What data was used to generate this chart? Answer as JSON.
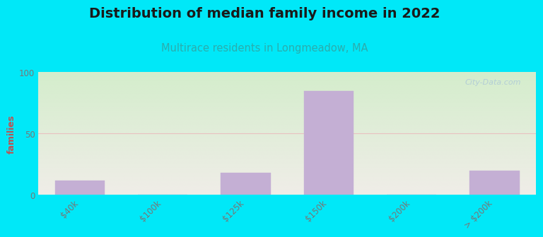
{
  "title": "Distribution of median family income in 2022",
  "subtitle": "Multirace residents in Longmeadow, MA",
  "categories": [
    "$40k",
    "$100k",
    "$125k",
    "$150k",
    "$200k",
    "> $200k"
  ],
  "values": [
    12,
    0,
    18,
    85,
    0,
    20
  ],
  "bar_color": "#c4afd4",
  "bar_edgecolor": "#c4afd4",
  "ylabel": "families",
  "ylim": [
    0,
    100
  ],
  "yticks": [
    0,
    50,
    100
  ],
  "grid_color": "#e8c0c0",
  "bg_color_topleft": "#d4edcc",
  "bg_color_bottomright": "#f0ede8",
  "outer_bg": "#00e8f8",
  "title_fontsize": 14,
  "title_fontweight": "bold",
  "subtitle_fontsize": 10.5,
  "subtitle_color": "#2aadad",
  "tick_color": "#777777",
  "ylabel_color": "#c05050",
  "watermark_text": "City-Data.com",
  "watermark_color": "#adc8d8",
  "bar_width": 0.6
}
